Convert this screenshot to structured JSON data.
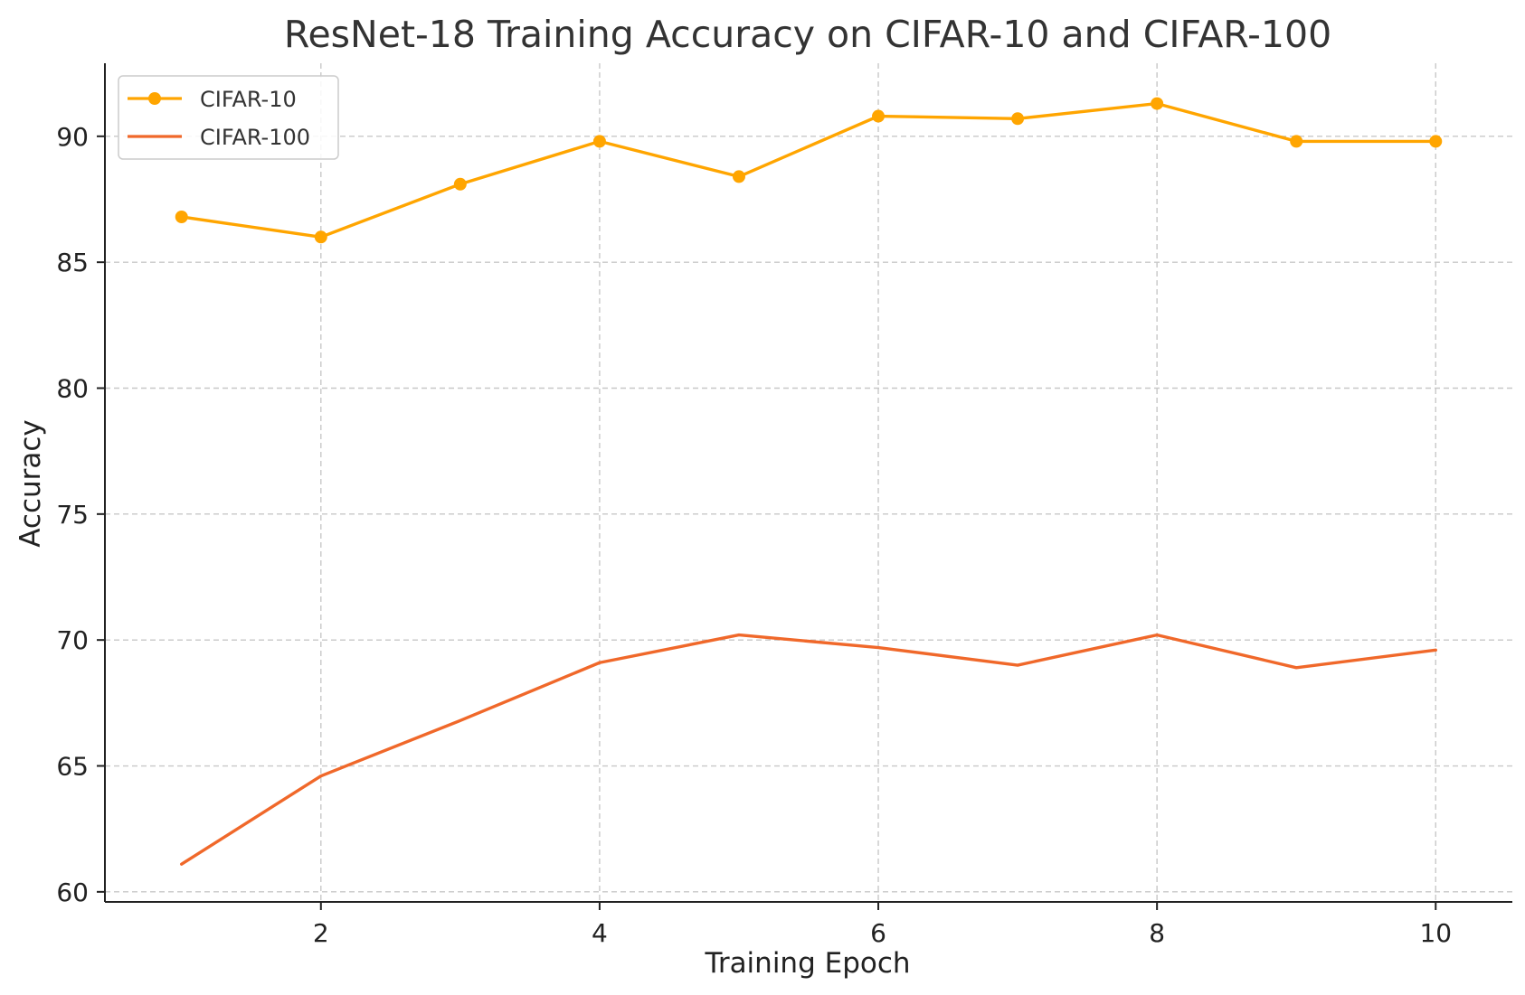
{
  "chart_data": {
    "type": "line",
    "title": "ResNet-18 Training Accuracy on CIFAR-10 and CIFAR-100",
    "xlabel": "Training Epoch",
    "ylabel": "Accuracy",
    "x": [
      1,
      2,
      3,
      4,
      5,
      6,
      7,
      8,
      9,
      10
    ],
    "xlim": [
      0.45,
      10.55
    ],
    "ylim": [
      59.6,
      92.9
    ],
    "xticks": [
      2,
      4,
      6,
      8,
      10
    ],
    "yticks": [
      60,
      65,
      70,
      75,
      80,
      85,
      90
    ],
    "grid": true,
    "legend_position": "top-left",
    "series": [
      {
        "name": "CIFAR-10",
        "color": "#FFA500",
        "marker": "circle",
        "values": [
          86.8,
          86.0,
          88.1,
          89.8,
          88.4,
          90.8,
          90.7,
          91.3,
          89.8,
          89.8
        ]
      },
      {
        "name": "CIFAR-100",
        "color": "#F0682A",
        "marker": "none",
        "values": [
          61.1,
          64.6,
          66.8,
          69.1,
          70.2,
          69.7,
          69.0,
          70.2,
          68.9,
          69.6
        ]
      }
    ]
  }
}
